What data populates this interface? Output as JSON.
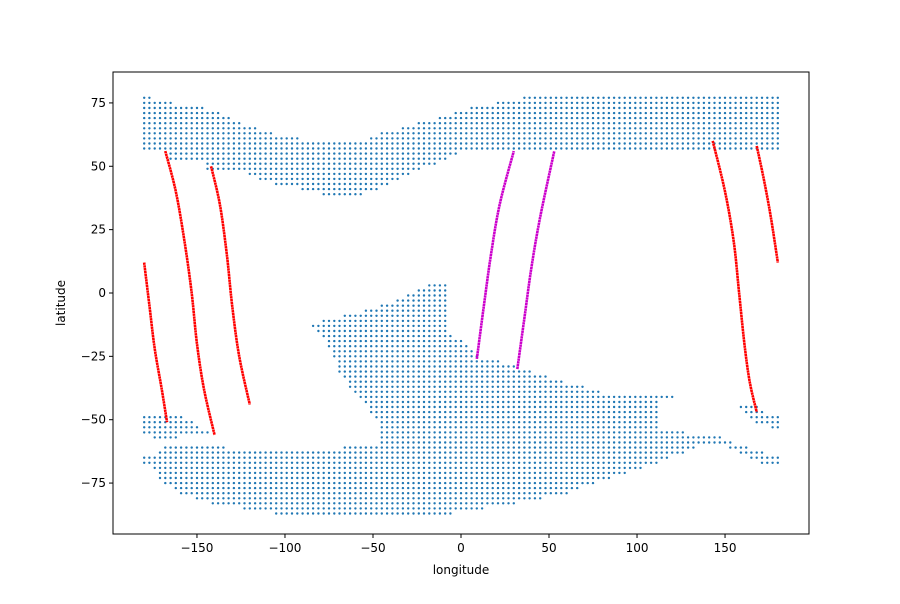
{
  "chart_data": {
    "type": "scatter",
    "title": "",
    "xlabel": "longitude",
    "ylabel": "latitude",
    "xlim": [
      -197.7,
      197.7
    ],
    "ylim": [
      -95.1,
      87.2
    ],
    "xticks": [
      -150,
      -100,
      -50,
      0,
      50,
      100,
      150
    ],
    "yticks": [
      -75,
      -50,
      -25,
      0,
      25,
      50,
      75
    ],
    "grid": false,
    "colors": {
      "points": "#1f77b4",
      "track_red": "#ff0000",
      "track_magenta": "#cc00cc"
    },
    "point_grid": {
      "lon_start": -180,
      "lon_end": 180,
      "lon_step": 3,
      "lat_start": -87,
      "lat_end": 77,
      "lat_step": 2
    },
    "point_regions": [
      {
        "name": "north-band",
        "polygon": [
          [
            -181,
            78
          ],
          [
            -172,
            76
          ],
          [
            -153,
            74
          ],
          [
            -140,
            72
          ],
          [
            -133,
            70
          ],
          [
            -128,
            68
          ],
          [
            -120,
            66
          ],
          [
            -110,
            64
          ],
          [
            -100,
            62
          ],
          [
            -85,
            60
          ],
          [
            -55,
            60
          ],
          [
            -50,
            62
          ],
          [
            -40,
            64
          ],
          [
            -30,
            66
          ],
          [
            -18,
            68
          ],
          [
            -8,
            70
          ],
          [
            0,
            72
          ],
          [
            8,
            74
          ],
          [
            30,
            76
          ],
          [
            40,
            78
          ],
          [
            78,
            78
          ],
          [
            80,
            80
          ],
          [
            145,
            80
          ],
          [
            150,
            78
          ],
          [
            181,
            78
          ],
          [
            181,
            56
          ],
          [
            0,
            56
          ],
          [
            -10,
            52
          ],
          [
            -25,
            48
          ],
          [
            -37,
            44
          ],
          [
            -50,
            40
          ],
          [
            -62,
            38
          ],
          [
            -75,
            38
          ],
          [
            -85,
            40
          ],
          [
            -98,
            42
          ],
          [
            -112,
            44
          ],
          [
            -125,
            48
          ],
          [
            -145,
            48
          ],
          [
            -147,
            52
          ],
          [
            -165,
            52
          ],
          [
            -167,
            56
          ],
          [
            -181,
            56
          ]
        ]
      },
      {
        "name": "south-main",
        "polygon": [
          [
            -86,
            -12
          ],
          [
            -60,
            -8
          ],
          [
            -50,
            -6
          ],
          [
            -38,
            -3
          ],
          [
            -28,
            0
          ],
          [
            -20,
            3
          ],
          [
            -8,
            4
          ],
          [
            -8,
            -14
          ],
          [
            -3,
            -17
          ],
          [
            2,
            -20
          ],
          [
            8,
            -24
          ],
          [
            16,
            -26
          ],
          [
            33,
            -29
          ],
          [
            45,
            -32
          ],
          [
            64,
            -36
          ],
          [
            80,
            -39
          ],
          [
            122,
            -39
          ],
          [
            122,
            -42
          ],
          [
            113,
            -42
          ],
          [
            113,
            -54
          ],
          [
            145,
            -56
          ],
          [
            150,
            -58
          ],
          [
            158,
            -60
          ],
          [
            170,
            -62
          ],
          [
            176,
            -64
          ],
          [
            181,
            -64
          ],
          [
            181,
            -68
          ],
          [
            172,
            -68
          ],
          [
            160,
            -64
          ],
          [
            150,
            -60
          ],
          [
            136,
            -60
          ],
          [
            124,
            -64
          ],
          [
            107,
            -68
          ],
          [
            90,
            -72
          ],
          [
            73,
            -76
          ],
          [
            56,
            -80
          ],
          [
            39,
            -82
          ],
          [
            22,
            -84
          ],
          [
            5,
            -86
          ],
          [
            -15,
            -88
          ],
          [
            -97,
            -88
          ],
          [
            -135,
            -84
          ],
          [
            -148,
            -82
          ],
          [
            -160,
            -79
          ],
          [
            -166,
            -76
          ],
          [
            -172,
            -73
          ],
          [
            -172,
            -62
          ],
          [
            -168,
            -60
          ],
          [
            -100,
            -62
          ],
          [
            -66,
            -61
          ],
          [
            -45,
            -59
          ],
          [
            -47,
            -52
          ],
          [
            -52,
            -46
          ],
          [
            -57,
            -41
          ],
          [
            -63,
            -37
          ],
          [
            -69,
            -31
          ],
          [
            -73,
            -24
          ],
          [
            -77,
            -19
          ],
          [
            -81,
            -15
          ],
          [
            -86,
            -14
          ]
        ]
      },
      {
        "name": "south-west-patch",
        "polygon": [
          [
            -181,
            -48
          ],
          [
            -160,
            -48
          ],
          [
            -150,
            -52
          ],
          [
            -138,
            -56
          ],
          [
            -160,
            -57
          ],
          [
            -172,
            -58
          ],
          [
            -181,
            -56
          ]
        ]
      },
      {
        "name": "south-west-bit",
        "polygon": [
          [
            -181,
            -63
          ],
          [
            -172,
            -63
          ],
          [
            -172,
            -70
          ],
          [
            -181,
            -68
          ]
        ]
      },
      {
        "name": "south-east-patch",
        "polygon": [
          [
            156,
            -43
          ],
          [
            166,
            -43
          ],
          [
            172,
            -47
          ],
          [
            181,
            -47
          ],
          [
            181,
            -54
          ],
          [
            170,
            -52
          ],
          [
            160,
            -47
          ]
        ]
      }
    ],
    "tracks": [
      {
        "color": "#ff0000",
        "points": [
          [
            -180,
            12
          ],
          [
            -177,
            -5
          ],
          [
            -174,
            -22
          ],
          [
            -170,
            -38
          ],
          [
            -167,
            -51
          ]
        ]
      },
      {
        "color": "#ff0000",
        "points": [
          [
            -168,
            56
          ],
          [
            -162,
            40
          ],
          [
            -157,
            20
          ],
          [
            -153,
            0
          ],
          [
            -150,
            -20
          ],
          [
            -146,
            -38
          ],
          [
            -140,
            -56
          ]
        ]
      },
      {
        "color": "#ff0000",
        "points": [
          [
            -142,
            50
          ],
          [
            -137,
            35
          ],
          [
            -133,
            15
          ],
          [
            -130,
            -5
          ],
          [
            -126,
            -25
          ],
          [
            -120,
            -44
          ]
        ]
      },
      {
        "color": "#cc00cc",
        "points": [
          [
            9,
            -26
          ],
          [
            13,
            -5
          ],
          [
            17,
            15
          ],
          [
            22,
            35
          ],
          [
            30,
            56
          ]
        ]
      },
      {
        "color": "#cc00cc",
        "points": [
          [
            32,
            -30
          ],
          [
            36,
            -10
          ],
          [
            40,
            10
          ],
          [
            45,
            30
          ],
          [
            53,
            56
          ]
        ]
      },
      {
        "color": "#ff0000",
        "points": [
          [
            143,
            60
          ],
          [
            150,
            40
          ],
          [
            155,
            20
          ],
          [
            158,
            0
          ],
          [
            161,
            -20
          ],
          [
            164,
            -35
          ],
          [
            168,
            -47
          ]
        ]
      },
      {
        "color": "#ff0000",
        "points": [
          [
            168,
            58
          ],
          [
            172,
            45
          ],
          [
            176,
            30
          ],
          [
            180,
            12
          ]
        ]
      }
    ]
  }
}
